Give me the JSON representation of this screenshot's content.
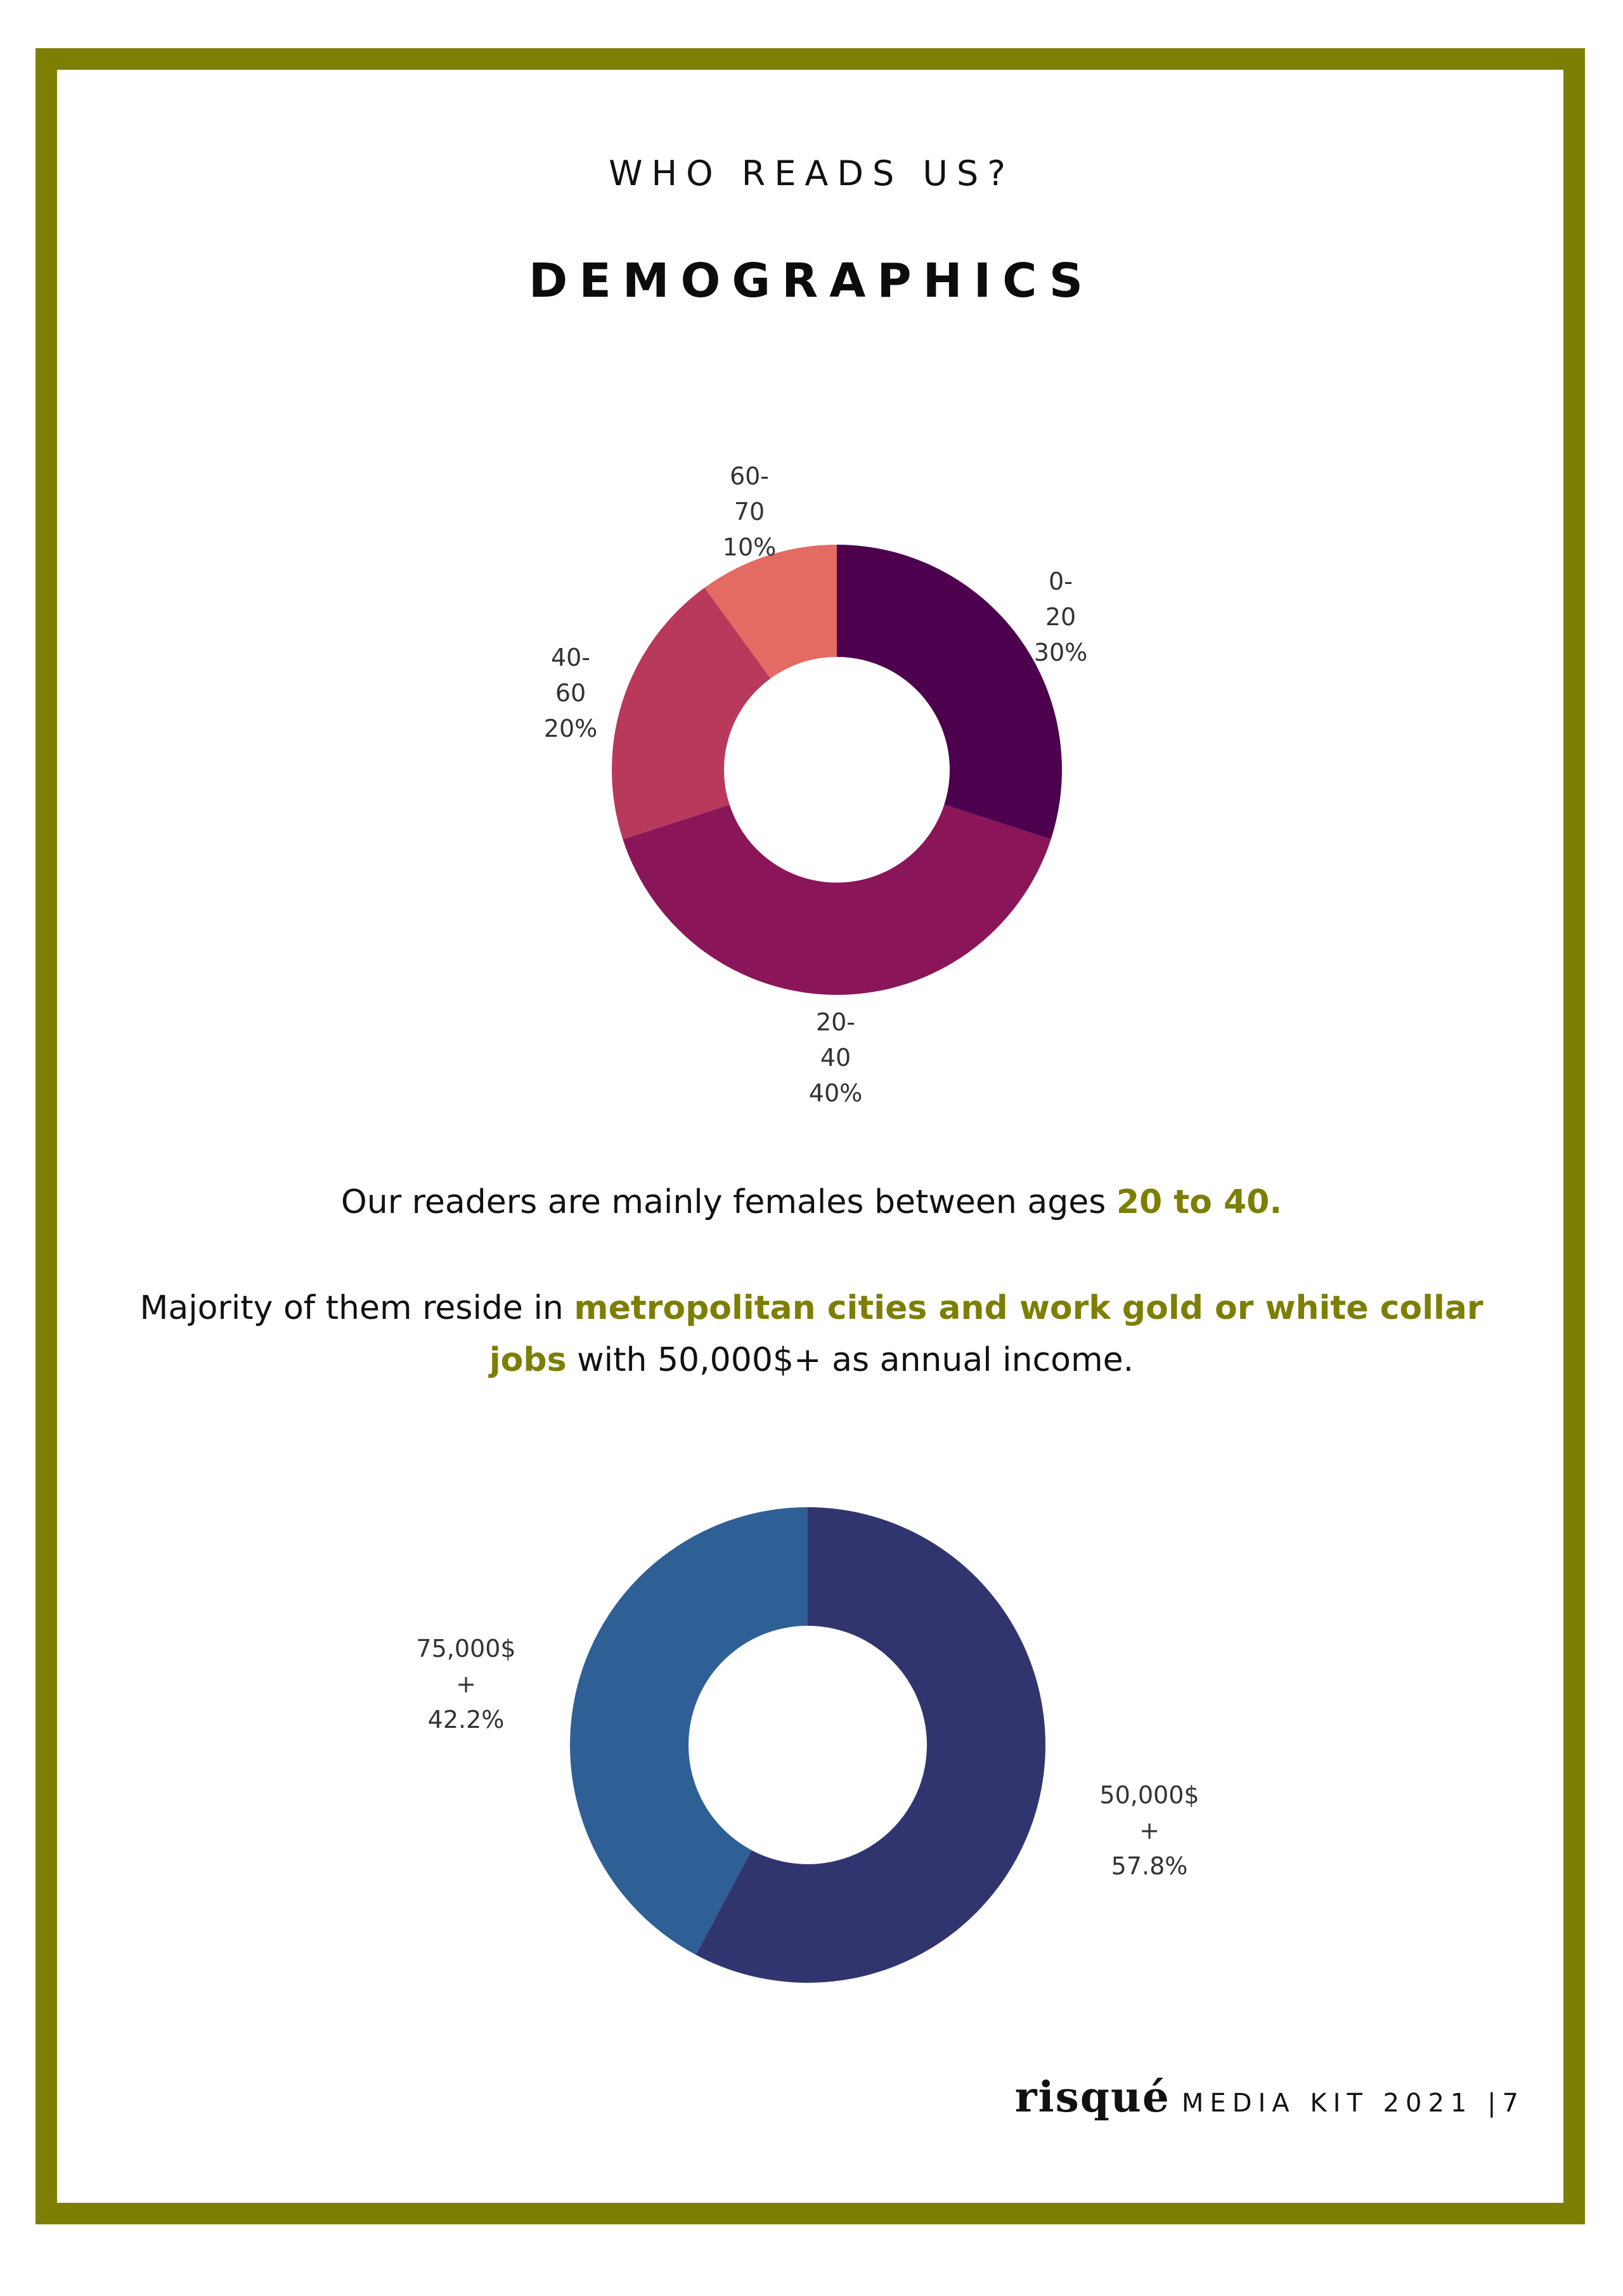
{
  "header": {
    "eyebrow": "WHO READS US?",
    "title": "DEMOGRAPHICS"
  },
  "copy": {
    "line1_prefix": "Our readers are mainly females between ages ",
    "line1_highlight": "20 to 40.",
    "line2_prefix": "Majority of them reside in ",
    "line2_highlight": "metropolitan cities and work gold or white collar jobs",
    "line2_suffix": " with 50,000$+ as annual income."
  },
  "footer": {
    "brand": "risqué",
    "kit": "MEDIA KIT 2021 |7"
  },
  "colors": {
    "border": "#7d7f05",
    "highlight": "#7d7f05"
  },
  "chart_data": [
    {
      "type": "pie",
      "title": "",
      "donut": true,
      "slices": [
        {
          "label": [
            "0-",
            "20",
            "30%"
          ],
          "value": 30,
          "color": "#4d004d"
        },
        {
          "label": [
            "20-",
            "40",
            "40%"
          ],
          "value": 40,
          "color": "#8a1659"
        },
        {
          "label": [
            "40-",
            "60",
            "20%"
          ],
          "value": 20,
          "color": "#b8395c"
        },
        {
          "label": [
            "60-",
            "70",
            "10%"
          ],
          "value": 10,
          "color": "#e36b63"
        }
      ]
    },
    {
      "type": "pie",
      "title": "",
      "donut": true,
      "slices": [
        {
          "label": [
            "50,000$",
            "+",
            "57.8%"
          ],
          "value": 57.8,
          "color": "#31356f"
        },
        {
          "label": [
            "75,000$",
            "+",
            "42.2%"
          ],
          "value": 42.2,
          "color": "#2e6096"
        }
      ]
    }
  ]
}
